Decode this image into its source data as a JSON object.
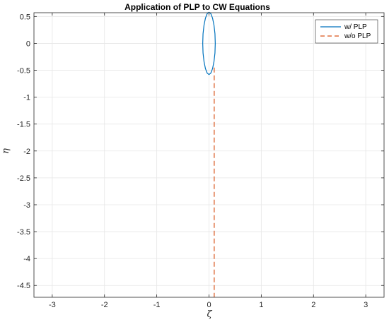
{
  "chart_data": {
    "type": "line",
    "title": "Application of PLP to CW Equations",
    "xlabel": "ζ",
    "ylabel": "η",
    "xlim": [
      -3.35,
      3.35
    ],
    "ylim": [
      -4.72,
      0.57
    ],
    "xticks": [
      -3,
      -2,
      -1,
      0,
      1,
      2,
      3
    ],
    "xtick_labels": [
      "-3",
      "-2",
      "-1",
      "0",
      "1",
      "2",
      "3"
    ],
    "yticks": [
      0.5,
      0,
      -0.5,
      -1,
      -1.5,
      -2,
      -2.5,
      -3,
      -3.5,
      -4,
      -4.5
    ],
    "ytick_labels": [
      "0.5",
      "0",
      "-0.5",
      "-1",
      "-1.5",
      "-2",
      "-2.5",
      "-3",
      "-3.5",
      "-4",
      "-4.5"
    ],
    "grid": true,
    "legend_position": "top-right",
    "series": [
      {
        "name": "w/ PLP",
        "style": "solid",
        "color": "#0072BD",
        "x": [
          0.0,
          0.035,
          0.068,
          0.095,
          0.114,
          0.12,
          0.114,
          0.095,
          0.068,
          0.035,
          0.0,
          -0.035,
          -0.068,
          -0.095,
          -0.114,
          -0.12,
          -0.114,
          -0.095,
          -0.068,
          -0.035,
          0.0
        ],
        "y": [
          0.58,
          0.552,
          0.47,
          0.341,
          0.179,
          0.0,
          -0.179,
          -0.341,
          -0.47,
          -0.552,
          -0.58,
          -0.552,
          -0.47,
          -0.341,
          -0.179,
          0.0,
          0.179,
          0.341,
          0.47,
          0.552,
          0.58
        ]
      },
      {
        "name": "w/o PLP",
        "style": "dashed",
        "color": "#D95319",
        "x": [
          0.1,
          0.1
        ],
        "y": [
          -0.45,
          -4.72
        ]
      }
    ]
  },
  "colors": {
    "axis": "#262626",
    "grid": "#e6e6e6",
    "background": "#ffffff"
  }
}
